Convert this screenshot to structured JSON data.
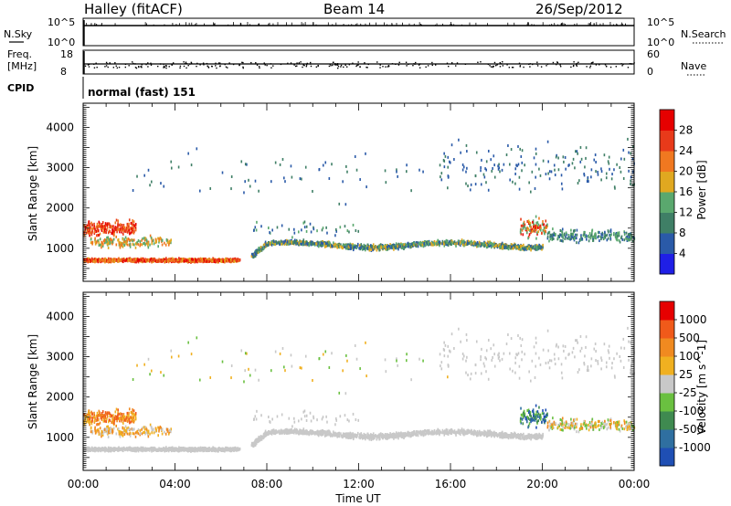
{
  "header": {
    "station": "Halley (fitACF)",
    "beam": "Beam 14",
    "date": "26/Sep/2012"
  },
  "top_panels": {
    "nsky": {
      "label": "N.Sky",
      "ticks": [
        "10^5",
        "10^0"
      ]
    },
    "nsearch": {
      "label": "N.Search",
      "ticks": [
        "10^5",
        "10^0"
      ]
    },
    "freq": {
      "label_line1": "Freq.",
      "label_line2": "[MHz]",
      "ticks": [
        "18",
        "8"
      ]
    },
    "nave": {
      "label": "Nave",
      "ticks": [
        "60",
        "0"
      ]
    },
    "cpid": {
      "label": "CPID",
      "value": "normal (fast) 151"
    }
  },
  "chart_data": [
    {
      "type": "heatmap",
      "title": "",
      "xlabel": "Time UT",
      "ylabel": "Slant Range [km]",
      "x_ticks": [
        "00:00",
        "04:00",
        "08:00",
        "12:00",
        "16:00",
        "20:00",
        "00:00"
      ],
      "x_range_hours": [
        0,
        24
      ],
      "y_ticks": [
        1000,
        2000,
        3000,
        4000
      ],
      "ylim": [
        180,
        4600
      ],
      "colorbar": {
        "label": "Power [dB]",
        "ticks": [
          "28",
          "24",
          "20",
          "16",
          "12",
          "8",
          "4"
        ],
        "colors": [
          "#1f1fe6",
          "#2a5aa8",
          "#3f7f66",
          "#5aa86e",
          "#e0a820",
          "#f07820",
          "#e83a1a",
          "#e60000"
        ]
      }
    },
    {
      "type": "heatmap",
      "title": "",
      "xlabel": "Time UT",
      "ylabel": "Slant Range [km]",
      "x_ticks": [
        "00:00",
        "04:00",
        "08:00",
        "12:00",
        "16:00",
        "20:00",
        "00:00"
      ],
      "x_range_hours": [
        0,
        24
      ],
      "y_ticks": [
        1000,
        2000,
        3000,
        4000
      ],
      "ylim": [
        180,
        4600
      ],
      "colorbar": {
        "label": "Velocity [m s^-1]",
        "ticks": [
          "1000",
          "500",
          "100",
          "25",
          "-25",
          "-100",
          "-500",
          "-1000"
        ],
        "colors": [
          "#1f4fb4",
          "#2f6fa0",
          "#3f8a50",
          "#6ac040",
          "#c8c8c8",
          "#f0b020",
          "#f08a20",
          "#f05a1a",
          "#e60000"
        ]
      }
    }
  ]
}
